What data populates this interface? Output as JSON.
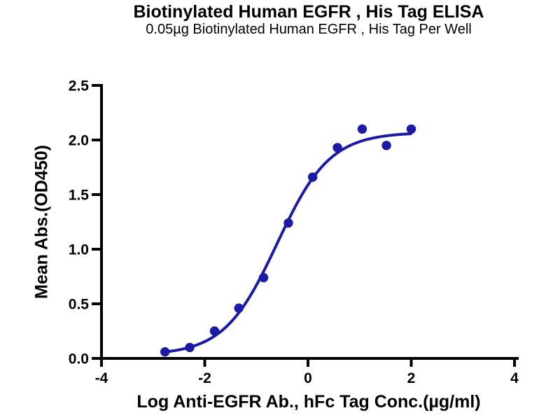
{
  "chart_data": {
    "type": "scatter",
    "title": "Biotinylated Human EGFR , His Tag ELISA",
    "subtitle": "0.05µg Biotinylated Human EGFR , His Tag Per Well",
    "xlabel": "Log Anti-EGFR Ab., hFc Tag Conc.(µg/ml)",
    "ylabel": "Mean Abs.(OD450)",
    "xlim": [
      -4,
      4
    ],
    "ylim": [
      0,
      2.5
    ],
    "x_ticks": [
      -4,
      -2,
      0,
      2,
      4
    ],
    "x_tick_labels": [
      "-4",
      "-2",
      "0",
      "2",
      "4"
    ],
    "y_ticks": [
      0.0,
      0.5,
      1.0,
      1.5,
      2.0,
      2.5
    ],
    "y_tick_labels": [
      "0.0",
      "0.5",
      "1.0",
      "1.5",
      "2.0",
      "2.5"
    ],
    "grid": false,
    "legend": "none",
    "marker_color": "#1b1ba6",
    "line_color": "#1b1ba6",
    "axis_color": "#000000",
    "points": [
      {
        "x": -2.77,
        "y": 0.06
      },
      {
        "x": -2.29,
        "y": 0.1
      },
      {
        "x": -1.81,
        "y": 0.25
      },
      {
        "x": -1.34,
        "y": 0.46
      },
      {
        "x": -0.86,
        "y": 0.74
      },
      {
        "x": -0.38,
        "y": 1.24
      },
      {
        "x": 0.09,
        "y": 1.66
      },
      {
        "x": 0.57,
        "y": 1.93
      },
      {
        "x": 1.05,
        "y": 2.1
      },
      {
        "x": 1.52,
        "y": 1.95
      },
      {
        "x": 2.0,
        "y": 2.1
      }
    ],
    "fit_curve": {
      "model": "4PL",
      "bottom": 0.03,
      "top": 2.07,
      "logEC50": -0.6,
      "hillslope": 0.85,
      "x_start": -2.77,
      "x_end": 2.0
    }
  }
}
